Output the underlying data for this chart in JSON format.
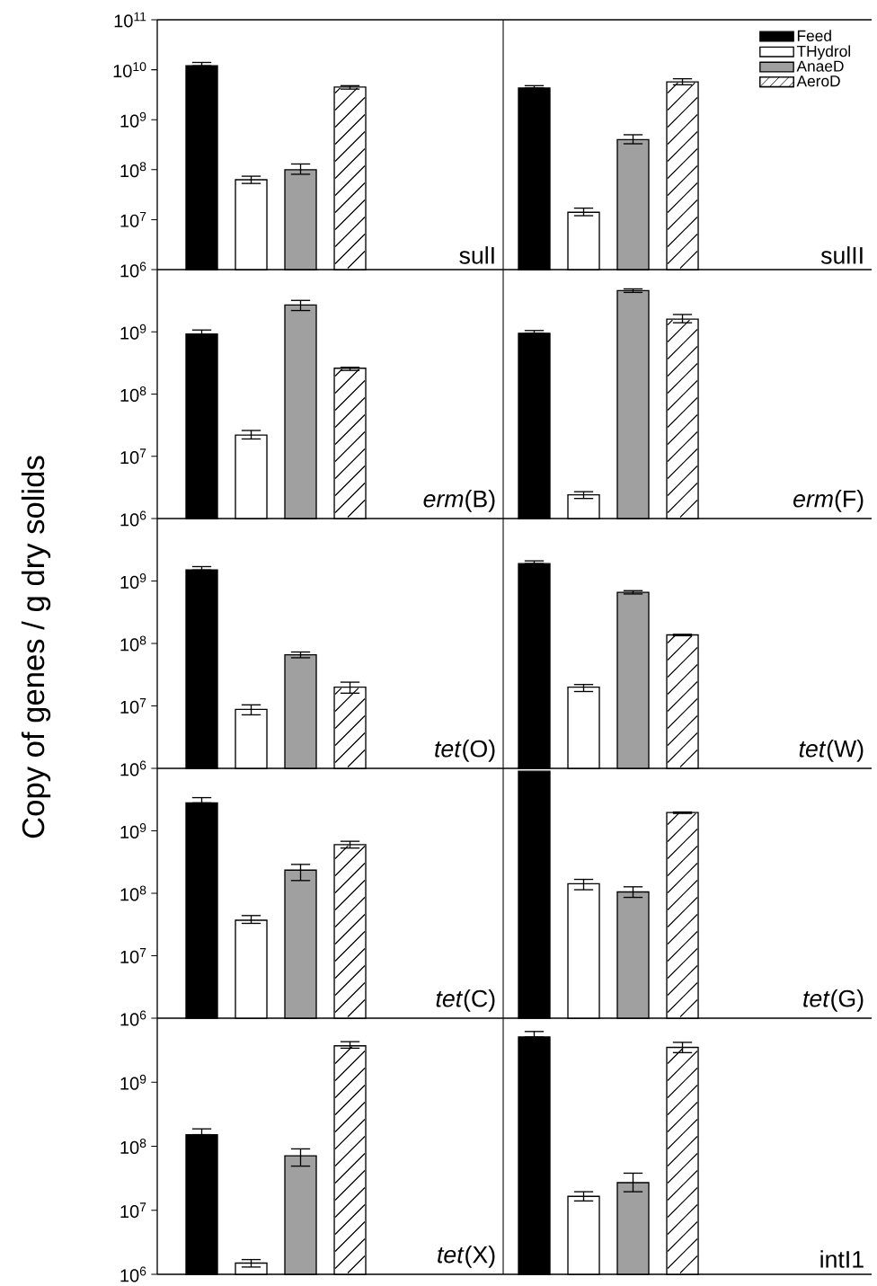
{
  "chart_data": [
    {
      "type": "bar",
      "ylabel": "Copy of genes / g dry solids",
      "categories": [
        null,
        null
      ],
      "log": "y",
      "ylim": [
        1000000.0,
        100000000000.0
      ],
      "legend": "top right",
      "yticks": [
        {
          "value": 1000000.0,
          "label": "10$^{6}$"
        },
        {
          "value": 10000000.0,
          "label": "10$^{7}$"
        },
        {
          "value": 100000000.0,
          "label": "10$^{8}$"
        },
        {
          "value": 1000000000.0,
          "label": "10$^{9}$"
        },
        {
          "value": 10000000000.0,
          "label": "10$^{10}$"
        },
        {
          "value": 100000000000.0,
          "label": "10$^{11}$"
        }
      ],
      "series": [
        {
          "name": "Feed",
          "color": "#000000",
          "values": [
            12000000000.0,
            4300000000.0
          ],
          "errors": [
            [
              12000000000.0,
              14000000000.0
            ],
            [
              4300000000.0,
              4800000000.0
            ]
          ]
        },
        {
          "name": "THydrol",
          "color": "#ffffff",
          "values": [
            63000000.0,
            14000000.0
          ],
          "errors": [
            [
              53000000.0,
              74000000.0
            ],
            [
              12000000.0,
              17000000.0
            ]
          ]
        },
        {
          "name": "AnaeD",
          "color": "#a0a0a0",
          "values": [
            100000000.0,
            400000000.0
          ],
          "errors": [
            [
              81000000.0,
              130000000.0
            ],
            [
              330000000.0,
              500000000.0
            ]
          ]
        },
        {
          "name": "AeroD",
          "color": "#ffffff",
          "values": [
            4500000000.0,
            5700000000.0
          ],
          "errors": [
            [
              4100000000.0,
              4800000000.0
            ],
            [
              5000000000.0,
              6600000000.0
            ]
          ]
        }
      ],
      "annotations": [
        "sulI",
        "sulII"
      ]
    },
    {
      "type": "bar",
      "categories": [
        null,
        null
      ],
      "log": "y",
      "ylim": [
        1000000.0,
        10000000000.0
      ],
      "yticks": [
        {
          "value": 1000000.0,
          "label": "10$^{6}$"
        },
        {
          "value": 10000000.0,
          "label": "10$^{7}$"
        },
        {
          "value": 100000000.0,
          "label": "10$^{8}$"
        },
        {
          "value": 1000000000.0,
          "label": "10$^{9}$"
        }
      ],
      "series": [
        {
          "color": "#000000",
          "values": [
            920000000.0,
            950000000.0
          ],
          "errors": [
            [
              920000000.0,
              1070000000.0
            ],
            [
              950000000.0,
              1050000000.0
            ]
          ]
        },
        {
          "color": "#ffffff",
          "values": [
            22000000.0,
            2400000.0
          ],
          "errors": [
            [
              19000000.0,
              26000000.0
            ],
            [
              2100000.0,
              2700000.0
            ]
          ]
        },
        {
          "color": "#a0a0a0",
          "values": [
            2700000000.0,
            4600000000.0
          ],
          "errors": [
            [
              2200000000.0,
              3200000000.0
            ],
            [
              4300000000.0,
              4900000000.0
            ]
          ]
        },
        {
          "color": "#ffffff",
          "values": [
            260000000.0,
            1600000000.0
          ],
          "errors": [
            [
              240000000.0,
              270000000.0
            ],
            [
              1400000000.0,
              1900000000.0
            ]
          ]
        }
      ],
      "annotations": [
        "*erm*(B)",
        "*erm*(F)"
      ]
    },
    {
      "type": "bar",
      "categories": [
        null,
        null
      ],
      "log": "y",
      "ylim": [
        1000000.0,
        10000000000.0
      ],
      "yticks": [
        {
          "value": 1000000.0,
          "label": "10$^{6}$"
        },
        {
          "value": 10000000.0,
          "label": "10$^{7}$"
        },
        {
          "value": 100000000.0,
          "label": "10$^{8}$"
        },
        {
          "value": 1000000000.0,
          "label": "10$^{9}$"
        }
      ],
      "series": [
        {
          "color": "#000000",
          "values": [
            1500000000.0,
            1900000000.0
          ],
          "errors": [
            [
              1500000000.0,
              1700000000.0
            ],
            [
              1900000000.0,
              2100000000.0
            ]
          ]
        },
        {
          "color": "#ffffff",
          "values": [
            8800000.0,
            20000000.0
          ],
          "errors": [
            [
              7200000.0,
              10400000.0
            ],
            [
              17000000.0,
              22000000.0
            ]
          ]
        },
        {
          "color": "#a0a0a0",
          "values": [
            66000000.0,
            660000000.0
          ],
          "errors": [
            [
              59000000.0,
              73000000.0
            ],
            [
              620000000.0,
              700000000.0
            ]
          ]
        },
        {
          "color": "#ffffff",
          "values": [
            20000000.0,
            137000000.0
          ],
          "errors": [
            [
              16000000.0,
              24000000.0
            ],
            [
              133000000.0,
              140000000.0
            ]
          ]
        }
      ],
      "annotations": [
        "*tet*(O)",
        "*tet*(W)"
      ]
    },
    {
      "type": "bar",
      "categories": [
        null,
        null
      ],
      "log": "y",
      "ylim": [
        1000000.0,
        10000000000.0
      ],
      "yticks": [
        {
          "value": 1000000.0,
          "label": "10$^{6}$"
        },
        {
          "value": 10000000.0,
          "label": "10$^{7}$"
        },
        {
          "value": 100000000.0,
          "label": "10$^{8}$"
        },
        {
          "value": 1000000000.0,
          "label": "10$^{9}$"
        }
      ],
      "series": [
        {
          "color": "#000000",
          "values": [
            2800000000.0,
            9000000000.0
          ],
          "errors": [
            [
              2800000000.0,
              3400000000.0
            ],
            null
          ]
        },
        {
          "color": "#ffffff",
          "values": [
            37000000.0,
            142000000.0
          ],
          "errors": [
            [
              33000000.0,
              44000000.0
            ],
            [
              114000000.0,
              167000000.0
            ]
          ]
        },
        {
          "color": "#a0a0a0",
          "values": [
            235000000.0,
            105000000.0
          ],
          "errors": [
            [
              160000000.0,
              290000000.0
            ],
            [
              86000000.0,
              127000000.0
            ]
          ]
        },
        {
          "color": "#ffffff",
          "values": [
            600000000.0,
            1960000000.0
          ],
          "errors": [
            [
              530000000.0,
              680000000.0
            ],
            [
              1900000000.0,
              2000000000.0
            ]
          ]
        }
      ],
      "annotations": [
        "*tet*(C)",
        "*tet*(G)"
      ]
    },
    {
      "type": "bar",
      "categories": [
        null,
        null
      ],
      "log": "y",
      "ylim": [
        1000000.0,
        10000000000.0
      ],
      "yticks": [
        {
          "value": 1000000.0,
          "label": "10$^{6}$"
        },
        {
          "value": 10000000.0,
          "label": "10$^{7}$"
        },
        {
          "value": 100000000.0,
          "label": "10$^{8}$"
        },
        {
          "value": 1000000000.0,
          "label": "10$^{9}$"
        }
      ],
      "series": [
        {
          "color": "#000000",
          "values": [
            152000000.0,
            5100000000.0
          ],
          "errors": [
            [
              152000000.0,
              187000000.0
            ],
            [
              5100000000.0,
              6200000000.0
            ]
          ]
        },
        {
          "color": "#ffffff",
          "values": [
            1500000.0,
            16500000.0
          ],
          "errors": [
            [
              1300000.0,
              1700000.0
            ],
            [
              14000000.0,
              19500000.0
            ]
          ]
        },
        {
          "color": "#a0a0a0",
          "values": [
            71000000.0,
            27000000.0
          ],
          "errors": [
            [
              49000000.0,
              91000000.0
            ],
            [
              19500000.0,
              38000000.0
            ]
          ]
        },
        {
          "color": "#ffffff",
          "values": [
            3700000000.0,
            3500000000.0
          ],
          "errors": [
            [
              3400000000.0,
              4300000000.0
            ],
            [
              2900000000.0,
              4200000000.0
            ]
          ]
        }
      ],
      "annotations": [
        "*tet*(X)",
        "intI1"
      ]
    }
  ]
}
